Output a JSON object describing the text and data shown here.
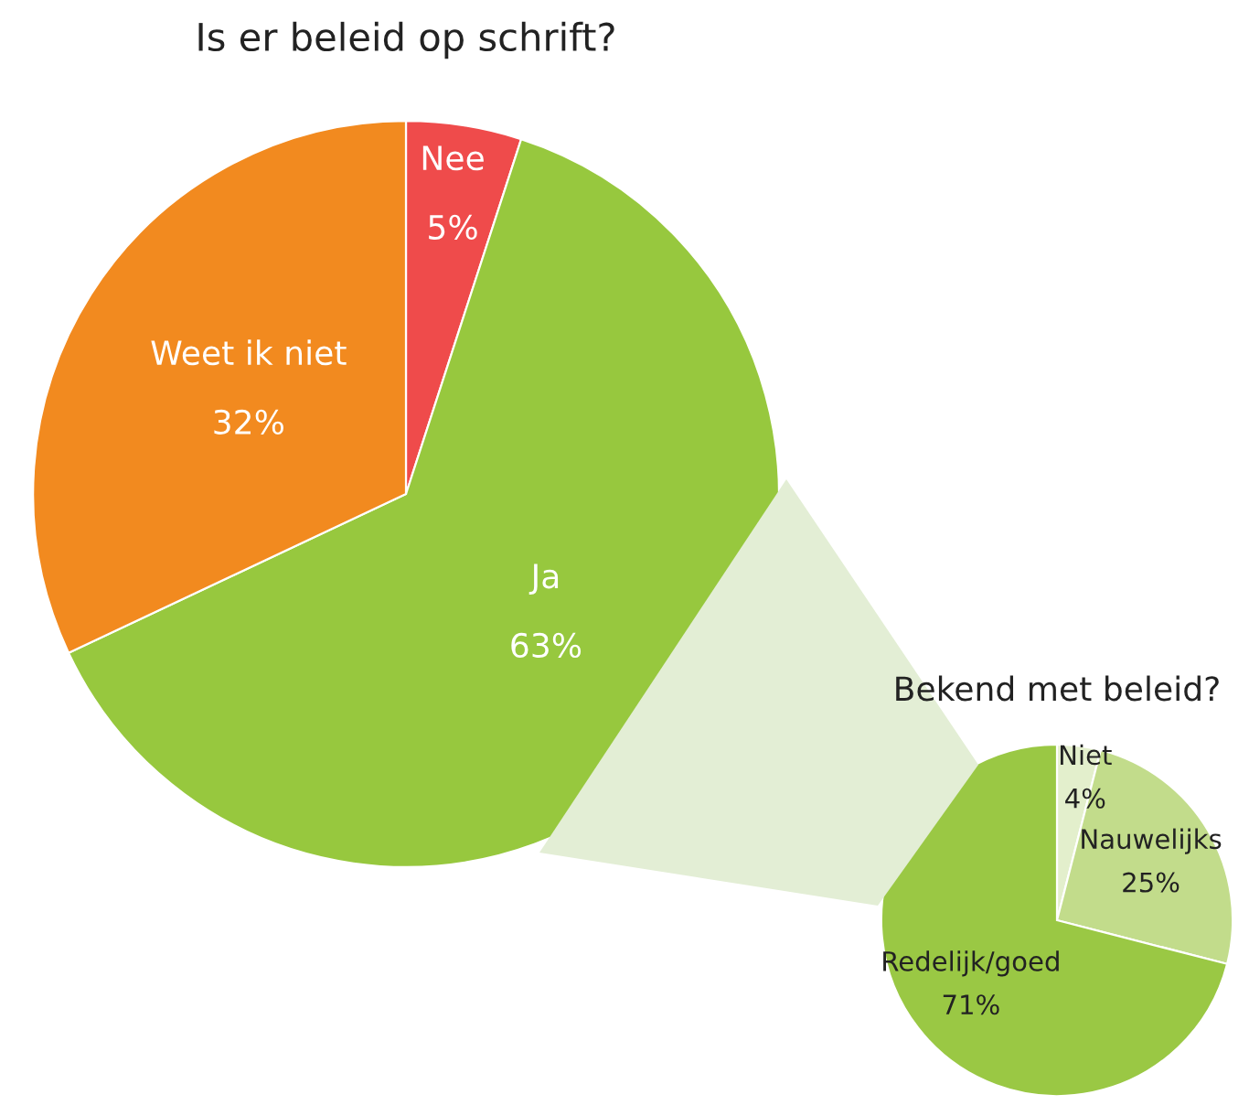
{
  "chart_data": [
    {
      "type": "pie",
      "title": "Is er beleid op schrift?",
      "categories": [
        "Nee",
        "Ja",
        "Weet ik niet"
      ],
      "values": [
        5,
        63,
        32
      ],
      "value_labels": [
        "5%",
        "63%",
        "32%"
      ],
      "colors": [
        "#ef4b4b",
        "#97c83e",
        "#f28a1f"
      ]
    },
    {
      "type": "pie",
      "title": "Bekend met beleid?",
      "categories": [
        "Niet",
        "Nauwelijks",
        "Redelijk/goed"
      ],
      "values": [
        4,
        25,
        71
      ],
      "value_labels": [
        "4%",
        "25%",
        "71%"
      ],
      "colors": [
        "#e3efcc",
        "#c2dc8b",
        "#9ac844"
      ]
    }
  ]
}
